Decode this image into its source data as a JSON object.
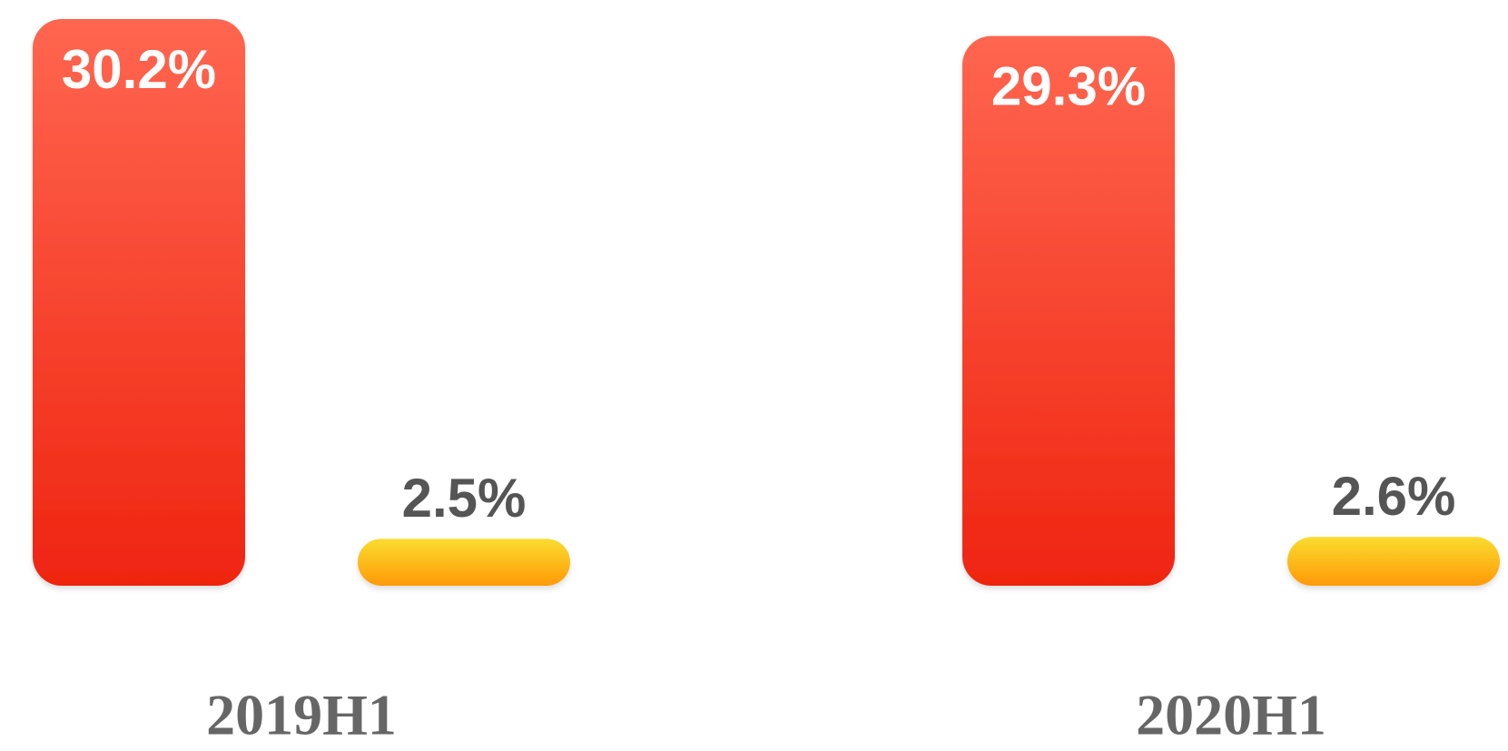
{
  "chart_data": {
    "type": "bar",
    "categories": [
      "2019H1",
      "2020H1"
    ],
    "series": [
      {
        "color": "#ef2410",
        "values": [
          30.2,
          29.3
        ],
        "value_labels": [
          "30.2%",
          "29.3%"
        ]
      },
      {
        "color": "#ff9a05",
        "values": [
          2.5,
          2.6
        ],
        "value_labels": [
          "2.5%",
          "2.6%"
        ]
      }
    ]
  }
}
